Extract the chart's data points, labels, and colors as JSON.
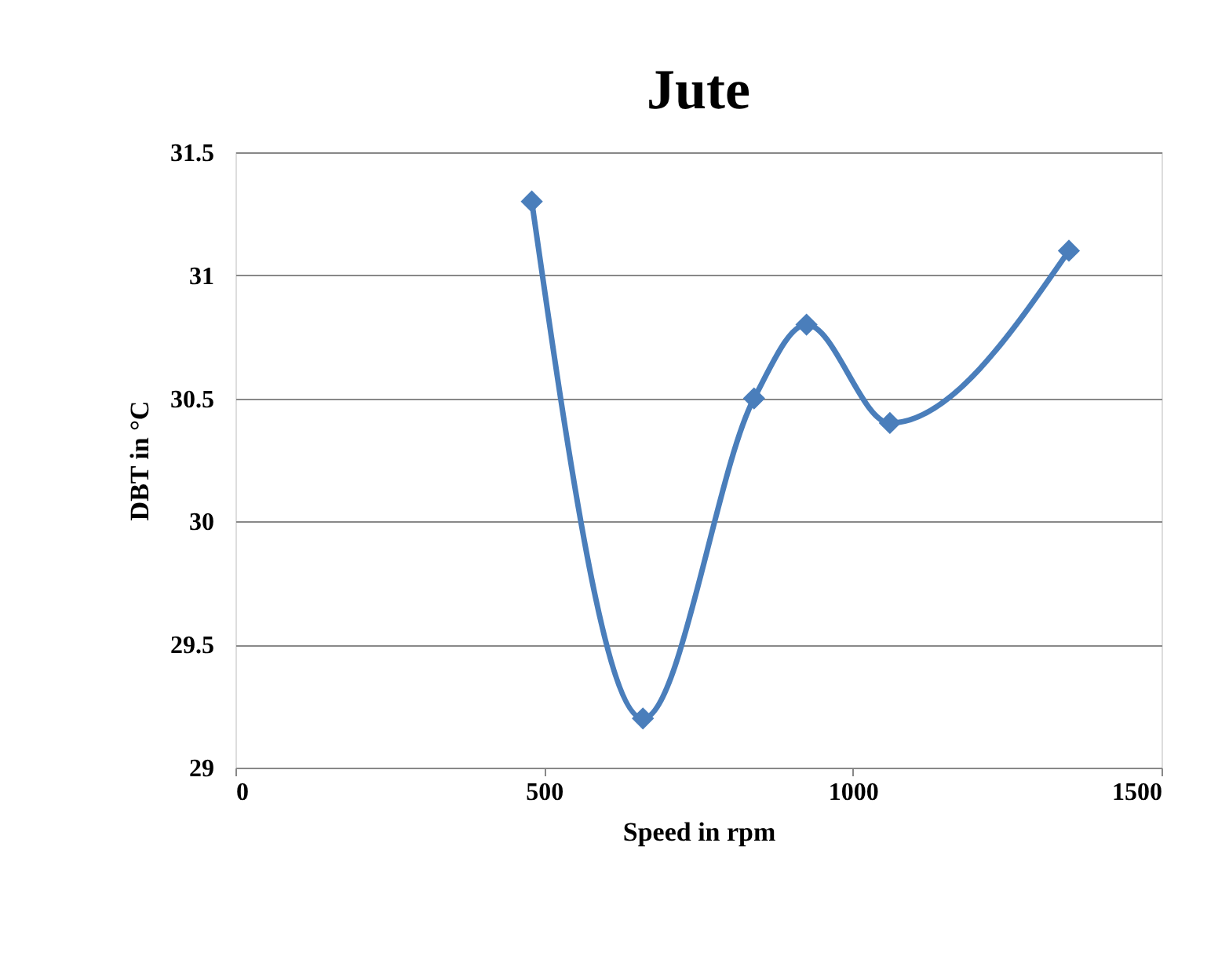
{
  "chart_data": {
    "type": "line",
    "title": "Jute",
    "xlabel": "Speed in rpm",
    "ylabel": "DBT in °C",
    "x": [
      480,
      660,
      840,
      925,
      1060,
      1350
    ],
    "series": [
      {
        "color": "#4a7ebb",
        "values": [
          31.3,
          29.2,
          30.5,
          30.8,
          30.4,
          31.1
        ]
      }
    ],
    "xlim": [
      0,
      1500
    ],
    "xticks": [
      0,
      500,
      1000,
      1500
    ],
    "ylim": [
      29,
      31.5
    ],
    "yticks": [
      29,
      29.5,
      30,
      30.5,
      31,
      31.5
    ],
    "grid": "y",
    "marker": "diamond",
    "line_style": "solid"
  }
}
